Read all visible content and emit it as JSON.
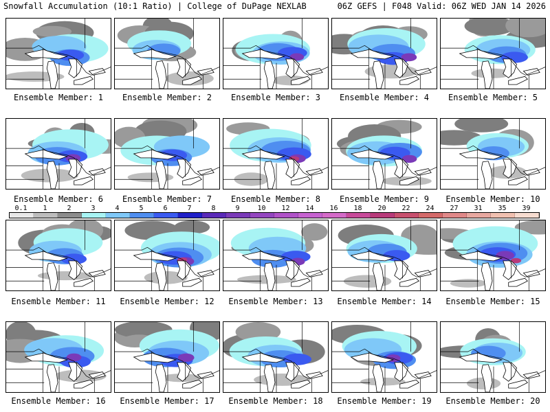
{
  "header": {
    "left": "Snowfall Accumulation (10:1 Ratio) | College of DuPage NEXLAB",
    "right": "06Z GEFS | F048 Valid: 06Z WED JAN 14 2026"
  },
  "caption_prefix": "Ensemble Member: ",
  "members": [
    {
      "n": "1",
      "intensity": 0.55
    },
    {
      "n": "2",
      "intensity": 0.35
    },
    {
      "n": "3",
      "intensity": 0.65
    },
    {
      "n": "4",
      "intensity": 0.75
    },
    {
      "n": "5",
      "intensity": 0.55
    },
    {
      "n": "6",
      "intensity": 0.7
    },
    {
      "n": "7",
      "intensity": 0.6
    },
    {
      "n": "8",
      "intensity": 0.85
    },
    {
      "n": "9",
      "intensity": 0.7
    },
    {
      "n": "10",
      "intensity": 0.3
    },
    {
      "n": "11",
      "intensity": 0.5
    },
    {
      "n": "12",
      "intensity": 0.85
    },
    {
      "n": "13",
      "intensity": 0.65
    },
    {
      "n": "14",
      "intensity": 0.55
    },
    {
      "n": "15",
      "intensity": 0.95
    },
    {
      "n": "16",
      "intensity": 0.7
    },
    {
      "n": "17",
      "intensity": 0.8
    },
    {
      "n": "18",
      "intensity": 0.6
    },
    {
      "n": "19",
      "intensity": 0.65
    },
    {
      "n": "20",
      "intensity": 0.4
    }
  ],
  "legend": {
    "labels": [
      "0.1",
      "1",
      "2",
      "3",
      "4",
      "5",
      "6",
      "7",
      "8",
      "9",
      "10",
      "12",
      "14",
      "16",
      "18",
      "20",
      "22",
      "24",
      "27",
      "31",
      "35",
      "39"
    ],
    "colors": [
      "#e8e8e8",
      "#bcbcbc",
      "#8c8c8c",
      "#a8f4f4",
      "#7fc8f8",
      "#4f8ef0",
      "#3a5af0",
      "#2020c8",
      "#5a2ab8",
      "#7a3ab8",
      "#9446c0",
      "#b052c8",
      "#c662d0",
      "#d46ac8",
      "#c84a9a",
      "#b83a7a",
      "#c8506e",
      "#d46a6a",
      "#e08888",
      "#e8a8a0",
      "#f0c0b0",
      "#f6dcd0"
    ]
  }
}
